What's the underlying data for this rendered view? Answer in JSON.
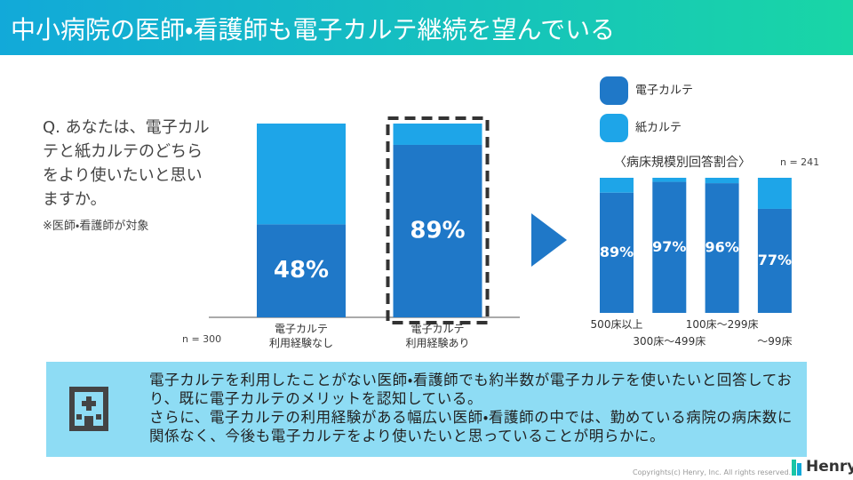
{
  "header": {
    "title": "中小病院の医師・看護師も電子カルテ継続を望んでいる"
  },
  "question": "Q. あなたは、電子カルテと紙カルテのどちらをより使いたいと思いますか。",
  "note": "※医師・看護師が対象",
  "chart_data": [
    {
      "type": "bar",
      "stacked": true,
      "categories": [
        "電子カルテ\n利用経験なし",
        "電子カルテ\n利用経験あり"
      ],
      "series": [
        {
          "color": "#1f78c8",
          "values": [
            48,
            89
          ],
          "value_labels": [
            "48%",
            "89%"
          ]
        },
        {
          "color": "#1ea5e8",
          "values": [
            52,
            11
          ]
        }
      ],
      "ylim": [
        0,
        100
      ],
      "highlight": 1,
      "annotation": "n = 300"
    },
    {
      "type": "bar",
      "stacked": true,
      "title": "〈病床規模別回答割合〉",
      "annotation": "n = 241",
      "categories": [
        "500床以上",
        "300床～499床",
        "100床～299床",
        "～99床"
      ],
      "series": [
        {
          "name": "電子カルテ",
          "color": "#1f78c8",
          "values": [
            89,
            97,
            96,
            77
          ],
          "value_labels": [
            "89%",
            "97%",
            "96%",
            "77%"
          ]
        },
        {
          "name": "紙カルテ",
          "color": "#1ea5e8",
          "values": [
            11,
            3,
            4,
            23
          ]
        }
      ],
      "ylim": [
        0,
        100
      ],
      "legend": "top-right"
    }
  ],
  "summary": [
    "電子カルテを利用したことがない医師・看護師でも約半数が電子カルテを使いたいと回答しており、既に電子カルテのメリットを認知している。",
    "さらに、電子カルテの利用経験がある幅広い医師・看護師の中では、勤めている病院の病床数に関係なく、今後も電子カルテをより使いたいと思っていることが明らかに。"
  ],
  "footer": {
    "copyright": "Copyrights(c) Henry, Inc. All rights reserved.",
    "brand": "Henry"
  }
}
